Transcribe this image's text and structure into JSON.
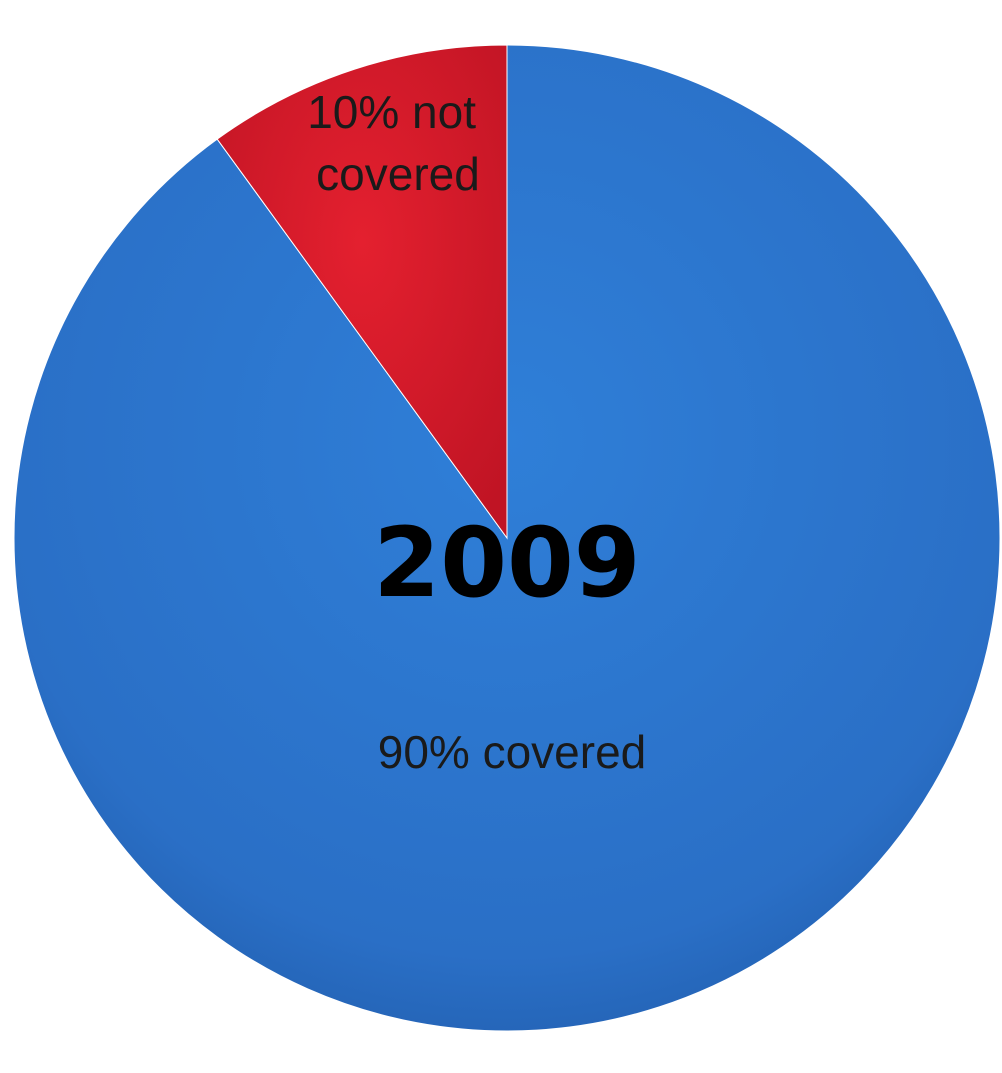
{
  "chart_data": {
    "type": "pie",
    "title": "2009",
    "slices": [
      {
        "label": "90% covered",
        "value": 90,
        "color": "#2b74cc"
      },
      {
        "label_lines": [
          "10% not",
          "covered"
        ],
        "value": 10,
        "color": "#d81a2c"
      }
    ],
    "legend": "none"
  }
}
